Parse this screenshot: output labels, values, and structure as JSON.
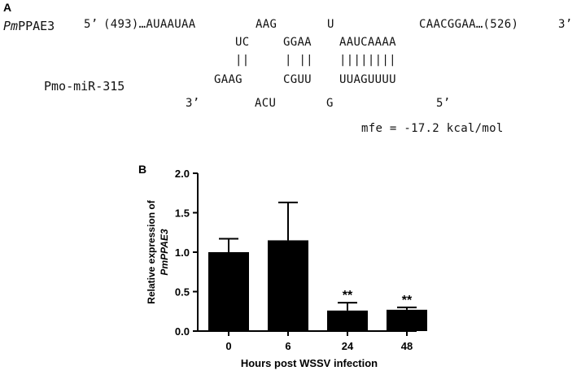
{
  "panels": {
    "a_label": "A",
    "b_label": "B"
  },
  "alignment": {
    "target_prefix_italic": "Pm",
    "target_name_rest": "PPAE3",
    "target_5prime": "5’",
    "target_start": "(493)…AUAAUAA",
    "target_loop1": "AAG",
    "target_loop2": "U",
    "target_end": "CAACGGAA…(526)",
    "target_3prime": "3’",
    "target_paired": [
      "UC",
      "GGAA",
      "AAUCAAAA"
    ],
    "pair_bars": [
      "||",
      "| ||",
      "||||||||"
    ],
    "mirna_name": "Pmo-miR-315",
    "mirna_paired": [
      "GAAG",
      "CGUU",
      "UUAGUUUU"
    ],
    "mirna_3prime": "3’",
    "mirna_loop1": "ACU",
    "mirna_loop2": "G",
    "mirna_5prime": "5’",
    "mfe": "mfe = -17.2 kcal/mol"
  },
  "chart_data": {
    "type": "bar",
    "categories": [
      "0",
      "6",
      "24",
      "48"
    ],
    "values": [
      1.0,
      1.15,
      0.26,
      0.27
    ],
    "errors": [
      0.17,
      0.48,
      0.1,
      0.03
    ],
    "annotations": [
      "",
      "",
      "**",
      "**"
    ],
    "xlabel": "Hours post WSSV infection",
    "ylabel_line1": "Relative expression of",
    "ylabel_line2": "PmPPAE3",
    "ylim": [
      0.0,
      2.0
    ],
    "yticks": [
      "0.0",
      "0.5",
      "1.0",
      "1.5",
      "2.0"
    ],
    "bar_color": "#000000"
  }
}
